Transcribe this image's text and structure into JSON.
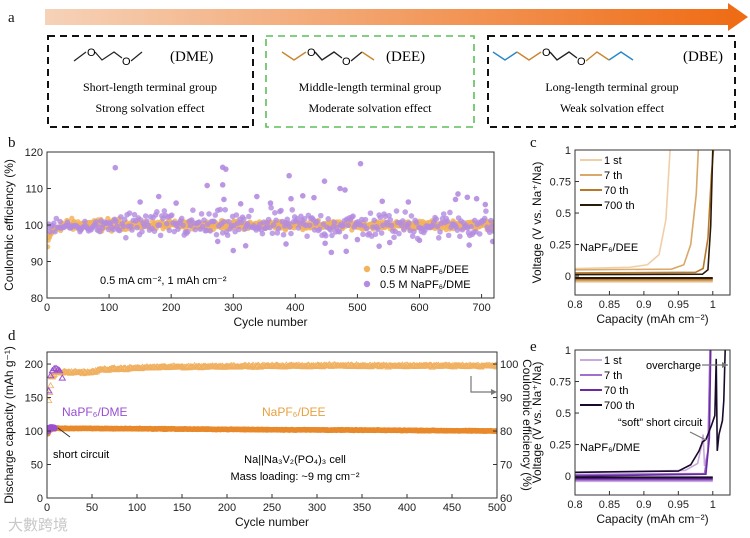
{
  "panel_a": {
    "label": "a",
    "boxes": [
      {
        "name": "(DME)",
        "line1": "Short-length terminal group",
        "line2": "Strong solvation effect"
      },
      {
        "name": "(DEE)",
        "line1": "Middle-length terminal group",
        "line2": "Moderate solvation effect"
      },
      {
        "name": "(DBE)",
        "line1": "Long-length terminal group",
        "line2": "Weak solvation effect"
      }
    ],
    "atom_label": "O",
    "colors": {
      "arrow_start": "#f6d2b8",
      "arrow_end": "#ef6a12",
      "box_dark": "#111111",
      "box_green": "#5cbf5c",
      "ethyl": "#c8862e",
      "butyl": "#2a86c8"
    }
  },
  "watermark": "大數跨境",
  "chart_data": [
    {
      "id": "b",
      "label": "b",
      "type": "scatter",
      "xlabel": "Cycle number",
      "ylabel": "Coulombic efficiency (%)",
      "xlim": [
        0,
        720
      ],
      "ylim": [
        80,
        120
      ],
      "xticks": [
        0,
        100,
        200,
        300,
        400,
        500,
        600,
        700
      ],
      "yticks": [
        80,
        90,
        100,
        110,
        120
      ],
      "annotation": "0.5 mA cm⁻², 1 mAh cm⁻²",
      "legend_position": "bottom-right",
      "series": [
        {
          "name": "0.5 M NaPF₆/DEE",
          "color": "#f2b35a",
          "initial": [
            [
              1,
              94
            ],
            [
              2,
              95.5
            ],
            [
              3,
              96.5
            ],
            [
              5,
              97.5
            ],
            [
              8,
              98.5
            ],
            [
              12,
              99
            ],
            [
              20,
              99.4
            ],
            [
              45,
              98.2
            ]
          ],
          "center": 100,
          "spread_early": 1.4,
          "spread_late": 0.9,
          "cycles": [
            1,
            720
          ]
        },
        {
          "name": "0.5 M NaPF₆/DME",
          "color": "#b38be0",
          "center_early": 99.5,
          "spread_early": 1.5,
          "center": 100,
          "spread_late": 3.2,
          "cycles": [
            1,
            720
          ],
          "outliers": [
            [
              110,
              115.7
            ],
            [
              283,
              115.8
            ],
            [
              288,
              115.3
            ],
            [
              390,
              113.5
            ],
            [
              447,
              112
            ],
            [
              505,
              116.8
            ],
            [
              258,
              110.8
            ],
            [
              283,
              111
            ],
            [
              472,
              110
            ],
            [
              480,
              109.6
            ],
            [
              180,
              107.8
            ],
            [
              338,
              107.8
            ],
            [
              412,
              108
            ],
            [
              662,
              108.5
            ],
            [
              677,
              107.6
            ],
            [
              692,
              107.2
            ],
            [
              285,
              107
            ],
            [
              393,
              107.2
            ],
            [
              430,
              107.5
            ],
            [
              150,
              106.3
            ],
            [
              208,
              106
            ],
            [
              312,
              105.8
            ],
            [
              360,
              106
            ],
            [
              540,
              106.5
            ],
            [
              582,
              106.3
            ],
            [
              658,
              107
            ],
            [
              706,
              105.6
            ],
            [
              300,
              93
            ],
            [
              458,
              92.5
            ],
            [
              482,
              92.8
            ],
            [
              680,
              94.5
            ],
            [
              535,
              94.2
            ],
            [
              385,
              94.8
            ],
            [
              320,
              94.3
            ],
            [
              275,
              95.5
            ],
            [
              448,
              95
            ],
            [
              500,
              96
            ],
            [
              552,
              95.2
            ],
            [
              600,
              95.8
            ],
            [
              718,
              95.5
            ]
          ]
        }
      ]
    },
    {
      "id": "c",
      "label": "c",
      "type": "line",
      "xlabel": "Capacity (mAh cm⁻²)",
      "ylabel": "Voltage (V vs. Na⁺/Na)",
      "xlim": [
        0.8,
        1.025
      ],
      "ylim": [
        -0.15,
        1
      ],
      "xticks": [
        0.8,
        0.85,
        0.9,
        0.95,
        1
      ],
      "yticks": [
        0,
        0.25,
        0.5,
        0.75,
        1
      ],
      "annotation": "NaPF₆/DEE",
      "legend_position": "top-left",
      "series": [
        {
          "name": "1 st",
          "color": "#f0cfa8",
          "charge": [
            [
              0.8,
              0.06
            ],
            [
              0.88,
              0.07
            ],
            [
              0.905,
              0.09
            ],
            [
              0.922,
              0.17
            ],
            [
              0.932,
              0.45
            ],
            [
              0.938,
              1
            ]
          ],
          "discharge": -0.045
        },
        {
          "name": "7 th",
          "color": "#d9a86a",
          "charge": [
            [
              0.8,
              0.05
            ],
            [
              0.94,
              0.055
            ],
            [
              0.958,
              0.09
            ],
            [
              0.968,
              0.25
            ],
            [
              0.976,
              0.65
            ],
            [
              0.979,
              1
            ]
          ],
          "discharge": -0.035
        },
        {
          "name": "70 th",
          "color": "#b8782a",
          "charge": [
            [
              0.8,
              0.025
            ],
            [
              0.975,
              0.03
            ],
            [
              0.986,
              0.06
            ],
            [
              0.993,
              0.3
            ],
            [
              0.998,
              0.8
            ],
            [
              1.001,
              1
            ]
          ],
          "discharge": -0.025
        },
        {
          "name": "700 th",
          "color": "#2a1a0a",
          "charge": [
            [
              0.8,
              0.012
            ],
            [
              0.985,
              0.015
            ],
            [
              0.993,
              0.05
            ],
            [
              0.997,
              0.4
            ],
            [
              1.0,
              1
            ]
          ],
          "discharge": -0.015
        }
      ]
    },
    {
      "id": "d",
      "label": "d",
      "type": "scatter",
      "xlabel": "Cycle number",
      "ylabel": "Discharge capacity (mAh g⁻¹)",
      "y2label": "Coulombic efficiency (%)",
      "xlim": [
        0,
        500
      ],
      "ylim": [
        0,
        218
      ],
      "y2lim": [
        60,
        103.6
      ],
      "xticks": [
        0,
        50,
        100,
        150,
        200,
        250,
        300,
        350,
        400,
        450,
        500
      ],
      "yticks": [
        0,
        50,
        100,
        150,
        200
      ],
      "y2ticks": [
        60,
        70,
        80,
        90,
        100
      ],
      "annotations": {
        "dme": "NaPF₆/DME",
        "dee": "NaPF₆/DEE",
        "short": "short circuit",
        "cell": "Na||Na₃V₂(PO₄)₃ cell",
        "loading": "Mass loading: ~9 mg cm⁻²"
      },
      "series": [
        {
          "name": "NaPF₆/DEE capacity",
          "color": "#e8892b",
          "points": [
            [
              1,
              96
            ],
            [
              3,
              102
            ],
            [
              10,
              104
            ],
            [
              100,
              103.5
            ],
            [
              250,
              102
            ],
            [
              400,
              101
            ],
            [
              500,
              100
            ]
          ]
        },
        {
          "name": "NaPF₆/DEE CE",
          "color": "#f0b060",
          "axis": "right",
          "points": [
            [
              2,
              89
            ],
            [
              5,
              96
            ],
            [
              10,
              97.5
            ],
            [
              50,
              97.5
            ],
            [
              60,
              98.3
            ],
            [
              120,
              99
            ],
            [
              200,
              99.3
            ],
            [
              320,
              99.5
            ],
            [
              500,
              99.4
            ]
          ]
        },
        {
          "name": "NaPF₆/DME capacity",
          "color": "#9a4fd0",
          "points": [
            [
              1,
              100
            ],
            [
              2,
              104
            ],
            [
              4,
              105
            ],
            [
              6,
              105
            ],
            [
              8,
              104.5
            ]
          ]
        },
        {
          "name": "NaPF₆/DME CE",
          "color": "#9a4fd0",
          "axis": "right",
          "points": [
            [
              2,
              92
            ],
            [
              4,
              96.5
            ],
            [
              6,
              98
            ],
            [
              8,
              98.6
            ],
            [
              10,
              98.7
            ],
            [
              12,
              98.4
            ],
            [
              14,
              98
            ],
            [
              17,
              95.8
            ]
          ]
        }
      ]
    },
    {
      "id": "e",
      "label": "e",
      "type": "line",
      "xlabel": "Capacity (mAh cm⁻²)",
      "ylabel": "Voltage (V vs. Na⁺/Na)",
      "xlim": [
        0.8,
        1.025
      ],
      "ylim": [
        -0.15,
        1
      ],
      "xticks": [
        0.8,
        0.85,
        0.9,
        0.95,
        1
      ],
      "yticks": [
        0,
        0.25,
        0.5,
        0.75,
        1
      ],
      "annotation": "NaPF₆/DME",
      "legend_position": "top-left",
      "annotations": {
        "overcharge": "overcharge",
        "soft_short": "“soft” short circuit"
      },
      "series": [
        {
          "name": "1 st",
          "color": "#c9a8e0",
          "charge": [
            [
              0.8,
              0.03
            ],
            [
              0.96,
              0.045
            ],
            [
              0.978,
              0.1
            ],
            [
              0.984,
              0.25
            ],
            [
              0.986,
              0.33
            ],
            [
              0.988,
              0.08
            ],
            [
              0.993,
              0.2
            ],
            [
              0.996,
              1
            ]
          ],
          "discharge": -0.04
        },
        {
          "name": "7 th",
          "color": "#a070d0",
          "charge": [
            [
              0.8,
              0.012
            ],
            [
              0.988,
              0.02
            ],
            [
              0.993,
              0.2
            ],
            [
              0.996,
              1
            ]
          ],
          "discharge": -0.03
        },
        {
          "name": "70 th",
          "color": "#6a2aa0",
          "charge": [
            [
              0.8,
              0.0
            ],
            [
              0.99,
              0.015
            ],
            [
              0.995,
              0.3
            ],
            [
              0.997,
              1
            ]
          ],
          "discharge": -0.02
        },
        {
          "name": "700 th",
          "color": "#1a0a2a",
          "charge": [
            [
              0.8,
              0.03
            ],
            [
              0.95,
              0.04
            ],
            [
              0.968,
              0.09
            ],
            [
              0.98,
              0.2
            ],
            [
              0.985,
              0.27
            ],
            [
              0.99,
              0.29
            ],
            [
              0.998,
              0.4
            ],
            [
              1.003,
              0.48
            ],
            [
              1.005,
              0.93
            ],
            [
              1.0065,
              0.2
            ],
            [
              1.009,
              0.33
            ],
            [
              1.014,
              0.44
            ],
            [
              1.016,
              0.6
            ],
            [
              1.018,
              1
            ]
          ],
          "discharge": -0.01
        }
      ]
    }
  ]
}
